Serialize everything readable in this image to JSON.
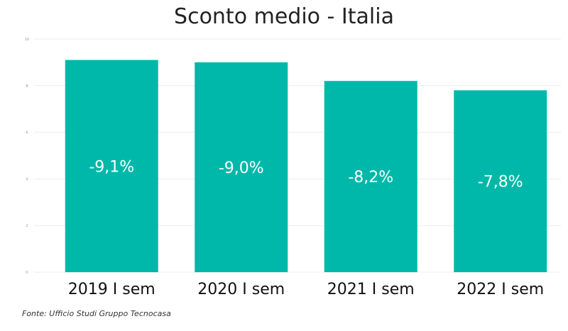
{
  "chart_data": {
    "type": "bar",
    "title": "Sconto medio - Italia",
    "categories": [
      "2019 I sem",
      "2020 I sem",
      "2021 I sem",
      "2022 I sem"
    ],
    "values": [
      9.1,
      9.0,
      8.2,
      7.8
    ],
    "data_labels": [
      "-9,1%",
      "-9,0%",
      "-8,2%",
      "-7,8%"
    ],
    "yticks": [
      0,
      2,
      4,
      6,
      8,
      10
    ],
    "ylim": [
      0,
      10
    ],
    "xlabel": "",
    "ylabel": "",
    "grid": true,
    "bar_color": "#00b8a9",
    "label_color": "#ffffff",
    "source": "Fonte: Ufficio Studi Gruppo Tecnocasa"
  }
}
